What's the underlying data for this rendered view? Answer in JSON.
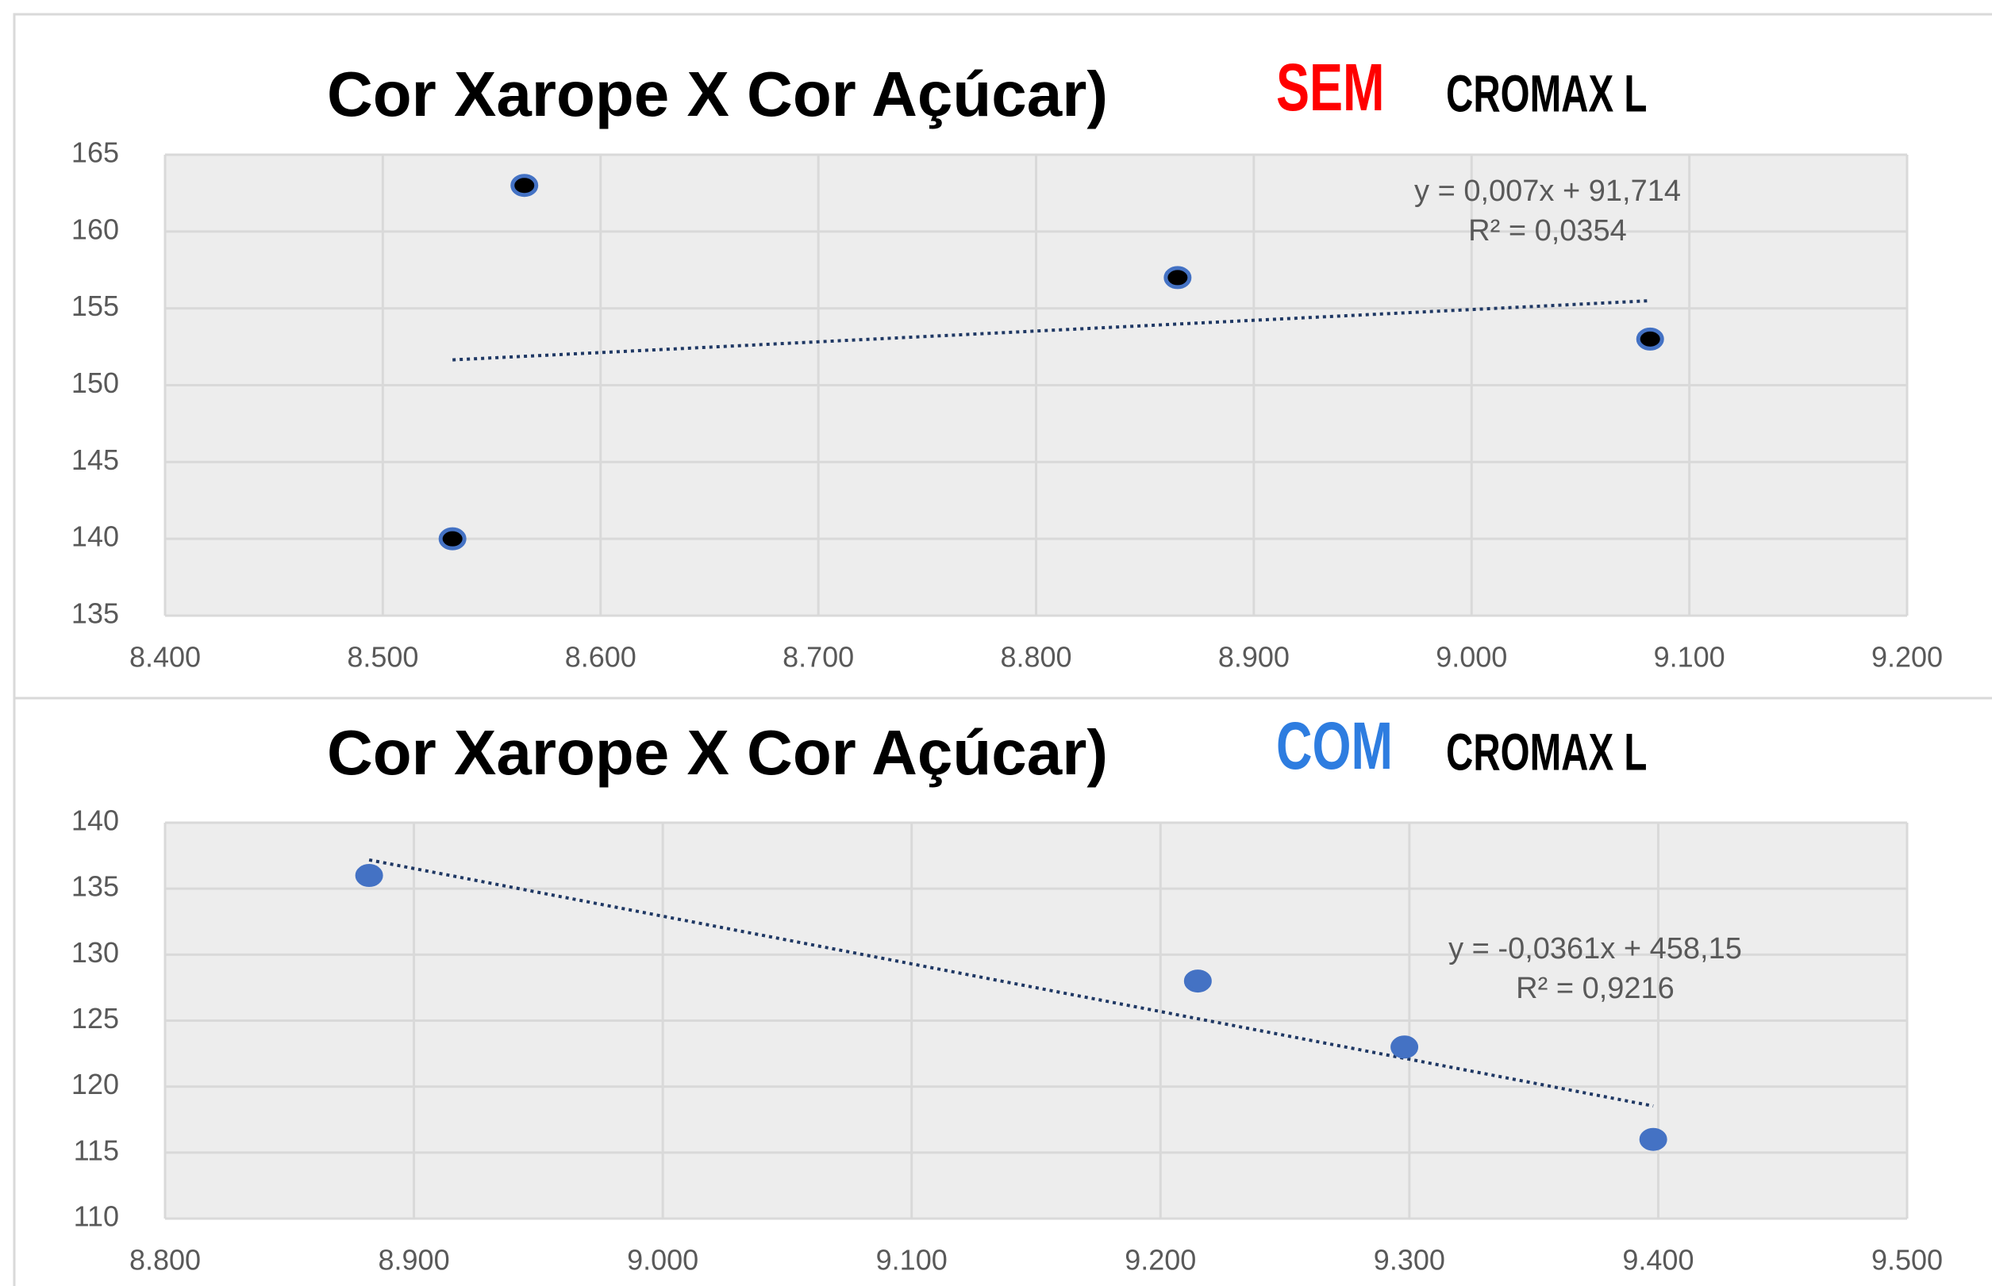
{
  "chart_data": [
    {
      "type": "scatter",
      "title": "Cor Xarope X Cor Açúcar)",
      "tag": "SEM",
      "tag_color": "#ff0000",
      "tag_note": "CROMAX L",
      "x": [
        8532,
        8565,
        8865,
        9082
      ],
      "values": [
        140,
        163,
        157,
        153
      ],
      "color": "#000000",
      "edge_color": "#4472c4",
      "trendline_color": "#1f3864",
      "annotations": [
        "y = 0,007x + 91,714",
        "R² = 0,0354"
      ],
      "xlim": [
        8400,
        9200
      ],
      "xticks": [
        {
          "value": 8400,
          "label": "8.400"
        },
        {
          "value": 8500,
          "label": "8.500"
        },
        {
          "value": 8600,
          "label": "8.600"
        },
        {
          "value": 8700,
          "label": "8.700"
        },
        {
          "value": 8800,
          "label": "8.800"
        },
        {
          "value": 8900,
          "label": "8.900"
        },
        {
          "value": 9000,
          "label": "9.000"
        },
        {
          "value": 9100,
          "label": "9.100"
        },
        {
          "value": 9200,
          "label": "9.200"
        }
      ],
      "ylim": [
        135,
        165
      ],
      "yticks": [
        135,
        140,
        145,
        150,
        155,
        160,
        165
      ],
      "grid": true
    },
    {
      "type": "scatter",
      "title": "Cor Xarope X Cor Açúcar)",
      "tag": "COM",
      "tag_color": "#2e7de0",
      "tag_note": "CROMAX L",
      "x": [
        8882,
        9215,
        9298,
        9398
      ],
      "values": [
        136,
        128,
        123,
        116
      ],
      "color": "#4472c4",
      "edge_color": "#4472c4",
      "trendline_color": "#1f3864",
      "annotations": [
        "y = -0,0361x + 458,15",
        "R² = 0,9216"
      ],
      "xlim": [
        8800,
        9500
      ],
      "xticks": [
        {
          "value": 8800,
          "label": "8.800"
        },
        {
          "value": 8900,
          "label": "8.900"
        },
        {
          "value": 9000,
          "label": "9.000"
        },
        {
          "value": 9100,
          "label": "9.100"
        },
        {
          "value": 9200,
          "label": "9.200"
        },
        {
          "value": 9300,
          "label": "9.300"
        },
        {
          "value": 9400,
          "label": "9.400"
        },
        {
          "value": 9500,
          "label": "9.500"
        }
      ],
      "ylim": [
        110,
        140
      ],
      "yticks": [
        110,
        115,
        120,
        125,
        130,
        135,
        140
      ],
      "grid": true
    }
  ]
}
